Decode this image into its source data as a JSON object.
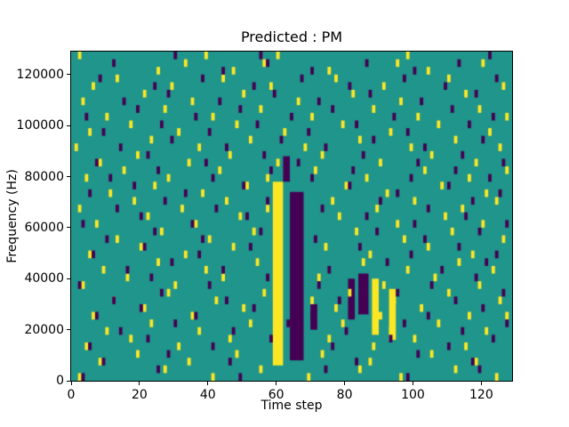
{
  "chart_data": {
    "type": "heatmap",
    "title": "Predicted : PM",
    "xlabel": "Time step",
    "ylabel": "Frequency (Hz)",
    "xlim": [
      0,
      129
    ],
    "ylim": [
      0,
      129000
    ],
    "x_ticks": [
      0,
      20,
      40,
      60,
      80,
      100,
      120
    ],
    "y_ticks": [
      0,
      20000,
      40000,
      60000,
      80000,
      100000,
      120000
    ],
    "grid": false,
    "legend": false,
    "colors": {
      "background": "#1f958b",
      "high": "#fde725",
      "low": "#440154"
    },
    "cell": {
      "w_steps": 1,
      "h_hz": 3000
    },
    "bands": [
      {
        "x0": 59,
        "x1": 61,
        "y0": 6000,
        "y1": 78000,
        "level": "high"
      },
      {
        "x0": 88,
        "x1": 89,
        "y0": 18000,
        "y1": 40000,
        "level": "high"
      },
      {
        "x0": 93,
        "x1": 94,
        "y0": 16000,
        "y1": 36000,
        "level": "high"
      },
      {
        "x0": 64,
        "x1": 67,
        "y0": 8000,
        "y1": 74000,
        "level": "low"
      },
      {
        "x0": 81,
        "x1": 82,
        "y0": 24000,
        "y1": 40000,
        "level": "low"
      },
      {
        "x0": 84,
        "x1": 86,
        "y0": 26000,
        "y1": 42000,
        "level": "low"
      },
      {
        "x0": 62,
        "x1": 63,
        "y0": 78000,
        "y1": 88000,
        "level": "low"
      },
      {
        "x0": 70,
        "x1": 71,
        "y0": 20000,
        "y1": 30000,
        "level": "low"
      }
    ],
    "cells": {
      "high": [
        [
          2,
          126000
        ],
        [
          25,
          120000
        ],
        [
          33,
          123000
        ],
        [
          39,
          126000
        ],
        [
          47,
          120000
        ],
        [
          56,
          123000
        ],
        [
          60,
          126000
        ],
        [
          75,
          120000
        ],
        [
          95,
          123000
        ],
        [
          98,
          126000
        ],
        [
          104,
          120000
        ],
        [
          120,
          123000
        ],
        [
          6,
          114000
        ],
        [
          13,
          117000
        ],
        [
          29,
          114000
        ],
        [
          44,
          117000
        ],
        [
          58,
          114000
        ],
        [
          77,
          117000
        ],
        [
          91,
          114000
        ],
        [
          110,
          117000
        ],
        [
          126,
          114000
        ],
        [
          3,
          108000
        ],
        [
          21,
          111000
        ],
        [
          35,
          108000
        ],
        [
          50,
          111000
        ],
        [
          66,
          108000
        ],
        [
          82,
          111000
        ],
        [
          96,
          108000
        ],
        [
          115,
          111000
        ],
        [
          10,
          102000
        ],
        [
          27,
          105000
        ],
        [
          41,
          102000
        ],
        [
          55,
          105000
        ],
        [
          70,
          102000
        ],
        [
          88,
          105000
        ],
        [
          101,
          102000
        ],
        [
          119,
          105000
        ],
        [
          127,
          102000
        ],
        [
          5,
          96000
        ],
        [
          17,
          99000
        ],
        [
          31,
          96000
        ],
        [
          48,
          99000
        ],
        [
          62,
          96000
        ],
        [
          79,
          99000
        ],
        [
          93,
          96000
        ],
        [
          107,
          99000
        ],
        [
          122,
          96000
        ],
        [
          1,
          90000
        ],
        [
          23,
          93000
        ],
        [
          37,
          90000
        ],
        [
          52,
          93000
        ],
        [
          68,
          90000
        ],
        [
          84,
          93000
        ],
        [
          99,
          90000
        ],
        [
          112,
          93000
        ],
        [
          125,
          90000
        ],
        [
          8,
          84000
        ],
        [
          19,
          87000
        ],
        [
          34,
          84000
        ],
        [
          46,
          87000
        ],
        [
          60,
          84000
        ],
        [
          73,
          87000
        ],
        [
          90,
          84000
        ],
        [
          105,
          87000
        ],
        [
          118,
          84000
        ],
        [
          4,
          78000
        ],
        [
          15,
          81000
        ],
        [
          28,
          78000
        ],
        [
          43,
          81000
        ],
        [
          57,
          78000
        ],
        [
          71,
          81000
        ],
        [
          86,
          78000
        ],
        [
          103,
          81000
        ],
        [
          116,
          78000
        ],
        [
          127,
          81000
        ],
        [
          11,
          72000
        ],
        [
          24,
          75000
        ],
        [
          38,
          72000
        ],
        [
          51,
          75000
        ],
        [
          80,
          75000
        ],
        [
          92,
          72000
        ],
        [
          108,
          75000
        ],
        [
          121,
          72000
        ],
        [
          2,
          66000
        ],
        [
          18,
          69000
        ],
        [
          32,
          66000
        ],
        [
          45,
          69000
        ],
        [
          57,
          66000
        ],
        [
          76,
          69000
        ],
        [
          89,
          66000
        ],
        [
          100,
          69000
        ],
        [
          114,
          66000
        ],
        [
          124,
          69000
        ],
        [
          7,
          60000
        ],
        [
          22,
          63000
        ],
        [
          36,
          60000
        ],
        [
          49,
          63000
        ],
        [
          78,
          63000
        ],
        [
          95,
          60000
        ],
        [
          109,
          63000
        ],
        [
          120,
          60000
        ],
        [
          13,
          54000
        ],
        [
          26,
          57000
        ],
        [
          40,
          54000
        ],
        [
          53,
          57000
        ],
        [
          83,
          57000
        ],
        [
          97,
          54000
        ],
        [
          111,
          57000
        ],
        [
          126,
          54000
        ],
        [
          5,
          48000
        ],
        [
          20,
          51000
        ],
        [
          33,
          48000
        ],
        [
          47,
          51000
        ],
        [
          74,
          51000
        ],
        [
          87,
          48000
        ],
        [
          104,
          51000
        ],
        [
          117,
          48000
        ],
        [
          9,
          42000
        ],
        [
          25,
          45000
        ],
        [
          39,
          42000
        ],
        [
          54,
          45000
        ],
        [
          85,
          45000
        ],
        [
          98,
          42000
        ],
        [
          113,
          45000
        ],
        [
          123,
          42000
        ],
        [
          3,
          36000
        ],
        [
          16,
          39000
        ],
        [
          30,
          36000
        ],
        [
          44,
          39000
        ],
        [
          72,
          39000
        ],
        [
          91,
          36000
        ],
        [
          106,
          39000
        ],
        [
          119,
          36000
        ],
        [
          12,
          30000
        ],
        [
          28,
          33000
        ],
        [
          42,
          30000
        ],
        [
          56,
          33000
        ],
        [
          70,
          30000
        ],
        [
          81,
          33000
        ],
        [
          94,
          30000
        ],
        [
          110,
          33000
        ],
        [
          125,
          30000
        ],
        [
          6,
          24000
        ],
        [
          21,
          27000
        ],
        [
          35,
          24000
        ],
        [
          50,
          27000
        ],
        [
          77,
          27000
        ],
        [
          90,
          24000
        ],
        [
          102,
          27000
        ],
        [
          116,
          24000
        ],
        [
          127,
          24000
        ],
        [
          10,
          18000
        ],
        [
          23,
          21000
        ],
        [
          37,
          18000
        ],
        [
          52,
          21000
        ],
        [
          79,
          21000
        ],
        [
          93,
          18000
        ],
        [
          107,
          21000
        ],
        [
          121,
          18000
        ],
        [
          4,
          12000
        ],
        [
          17,
          15000
        ],
        [
          31,
          12000
        ],
        [
          46,
          15000
        ],
        [
          75,
          15000
        ],
        [
          88,
          12000
        ],
        [
          100,
          15000
        ],
        [
          115,
          12000
        ],
        [
          8,
          6000
        ],
        [
          19,
          9000
        ],
        [
          34,
          6000
        ],
        [
          48,
          9000
        ],
        [
          73,
          9000
        ],
        [
          87,
          6000
        ],
        [
          105,
          9000
        ],
        [
          118,
          6000
        ],
        [
          2,
          0
        ],
        [
          27,
          3000
        ],
        [
          41,
          0
        ],
        [
          55,
          3000
        ],
        [
          69,
          0
        ],
        [
          84,
          3000
        ],
        [
          96,
          0
        ],
        [
          112,
          3000
        ],
        [
          124,
          0
        ]
      ],
      "low": [
        [
          12,
          123000
        ],
        [
          30,
          126000
        ],
        [
          44,
          120000
        ],
        [
          55,
          126000
        ],
        [
          57,
          123000
        ],
        [
          70,
          120000
        ],
        [
          86,
          123000
        ],
        [
          100,
          120000
        ],
        [
          113,
          123000
        ],
        [
          122,
          126000
        ],
        [
          8,
          117000
        ],
        [
          24,
          114000
        ],
        [
          38,
          117000
        ],
        [
          53,
          114000
        ],
        [
          67,
          117000
        ],
        [
          81,
          114000
        ],
        [
          97,
          117000
        ],
        [
          109,
          114000
        ],
        [
          124,
          117000
        ],
        [
          15,
          108000
        ],
        [
          28,
          111000
        ],
        [
          43,
          108000
        ],
        [
          59,
          111000
        ],
        [
          72,
          108000
        ],
        [
          87,
          111000
        ],
        [
          102,
          108000
        ],
        [
          118,
          111000
        ],
        [
          4,
          102000
        ],
        [
          19,
          105000
        ],
        [
          36,
          102000
        ],
        [
          49,
          105000
        ],
        [
          64,
          102000
        ],
        [
          76,
          105000
        ],
        [
          94,
          102000
        ],
        [
          111,
          105000
        ],
        [
          123,
          102000
        ],
        [
          9,
          96000
        ],
        [
          26,
          99000
        ],
        [
          40,
          96000
        ],
        [
          54,
          99000
        ],
        [
          69,
          96000
        ],
        [
          83,
          99000
        ],
        [
          98,
          96000
        ],
        [
          116,
          99000
        ],
        [
          14,
          90000
        ],
        [
          29,
          93000
        ],
        [
          45,
          90000
        ],
        [
          61,
          93000
        ],
        [
          74,
          90000
        ],
        [
          88,
          93000
        ],
        [
          103,
          90000
        ],
        [
          120,
          93000
        ],
        [
          7,
          84000
        ],
        [
          22,
          87000
        ],
        [
          39,
          84000
        ],
        [
          56,
          87000
        ],
        [
          66,
          84000
        ],
        [
          85,
          87000
        ],
        [
          101,
          84000
        ],
        [
          114,
          87000
        ],
        [
          126,
          84000
        ],
        [
          11,
          78000
        ],
        [
          25,
          81000
        ],
        [
          41,
          78000
        ],
        [
          58,
          81000
        ],
        [
          70,
          78000
        ],
        [
          82,
          81000
        ],
        [
          99,
          78000
        ],
        [
          112,
          81000
        ],
        [
          122,
          78000
        ],
        [
          5,
          72000
        ],
        [
          18,
          75000
        ],
        [
          33,
          72000
        ],
        [
          50,
          75000
        ],
        [
          81,
          75000
        ],
        [
          95,
          72000
        ],
        [
          110,
          75000
        ],
        [
          125,
          72000
        ],
        [
          13,
          66000
        ],
        [
          27,
          69000
        ],
        [
          42,
          66000
        ],
        [
          57,
          69000
        ],
        [
          73,
          66000
        ],
        [
          90,
          69000
        ],
        [
          104,
          66000
        ],
        [
          117,
          69000
        ],
        [
          3,
          60000
        ],
        [
          20,
          63000
        ],
        [
          35,
          60000
        ],
        [
          51,
          63000
        ],
        [
          86,
          63000
        ],
        [
          100,
          60000
        ],
        [
          115,
          63000
        ],
        [
          127,
          60000
        ],
        [
          10,
          54000
        ],
        [
          24,
          57000
        ],
        [
          38,
          54000
        ],
        [
          55,
          57000
        ],
        [
          71,
          54000
        ],
        [
          89,
          57000
        ],
        [
          103,
          54000
        ],
        [
          119,
          57000
        ],
        [
          6,
          48000
        ],
        [
          21,
          51000
        ],
        [
          37,
          48000
        ],
        [
          52,
          51000
        ],
        [
          84,
          51000
        ],
        [
          99,
          48000
        ],
        [
          113,
          51000
        ],
        [
          124,
          48000
        ],
        [
          16,
          42000
        ],
        [
          29,
          45000
        ],
        [
          44,
          42000
        ],
        [
          75,
          42000
        ],
        [
          92,
          45000
        ],
        [
          108,
          42000
        ],
        [
          121,
          45000
        ],
        [
          2,
          36000
        ],
        [
          23,
          39000
        ],
        [
          40,
          36000
        ],
        [
          57,
          39000
        ],
        [
          72,
          36000
        ],
        [
          105,
          36000
        ],
        [
          118,
          39000
        ],
        [
          12,
          30000
        ],
        [
          26,
          33000
        ],
        [
          45,
          30000
        ],
        [
          78,
          30000
        ],
        [
          95,
          33000
        ],
        [
          112,
          30000
        ],
        [
          126,
          33000
        ],
        [
          7,
          24000
        ],
        [
          20,
          27000
        ],
        [
          36,
          24000
        ],
        [
          53,
          27000
        ],
        [
          70,
          24000
        ],
        [
          104,
          24000
        ],
        [
          120,
          27000
        ],
        [
          14,
          18000
        ],
        [
          30,
          21000
        ],
        [
          47,
          18000
        ],
        [
          63,
          21000
        ],
        [
          80,
          18000
        ],
        [
          97,
          21000
        ],
        [
          114,
          18000
        ],
        [
          127,
          21000
        ],
        [
          5,
          12000
        ],
        [
          22,
          15000
        ],
        [
          41,
          12000
        ],
        [
          58,
          15000
        ],
        [
          76,
          12000
        ],
        [
          93,
          15000
        ],
        [
          110,
          12000
        ],
        [
          123,
          15000
        ],
        [
          9,
          6000
        ],
        [
          28,
          9000
        ],
        [
          46,
          6000
        ],
        [
          65,
          9000
        ],
        [
          83,
          6000
        ],
        [
          101,
          9000
        ],
        [
          117,
          6000
        ],
        [
          3,
          0
        ],
        [
          25,
          3000
        ],
        [
          49,
          0
        ],
        [
          74,
          3000
        ],
        [
          98,
          0
        ],
        [
          119,
          3000
        ]
      ]
    }
  }
}
